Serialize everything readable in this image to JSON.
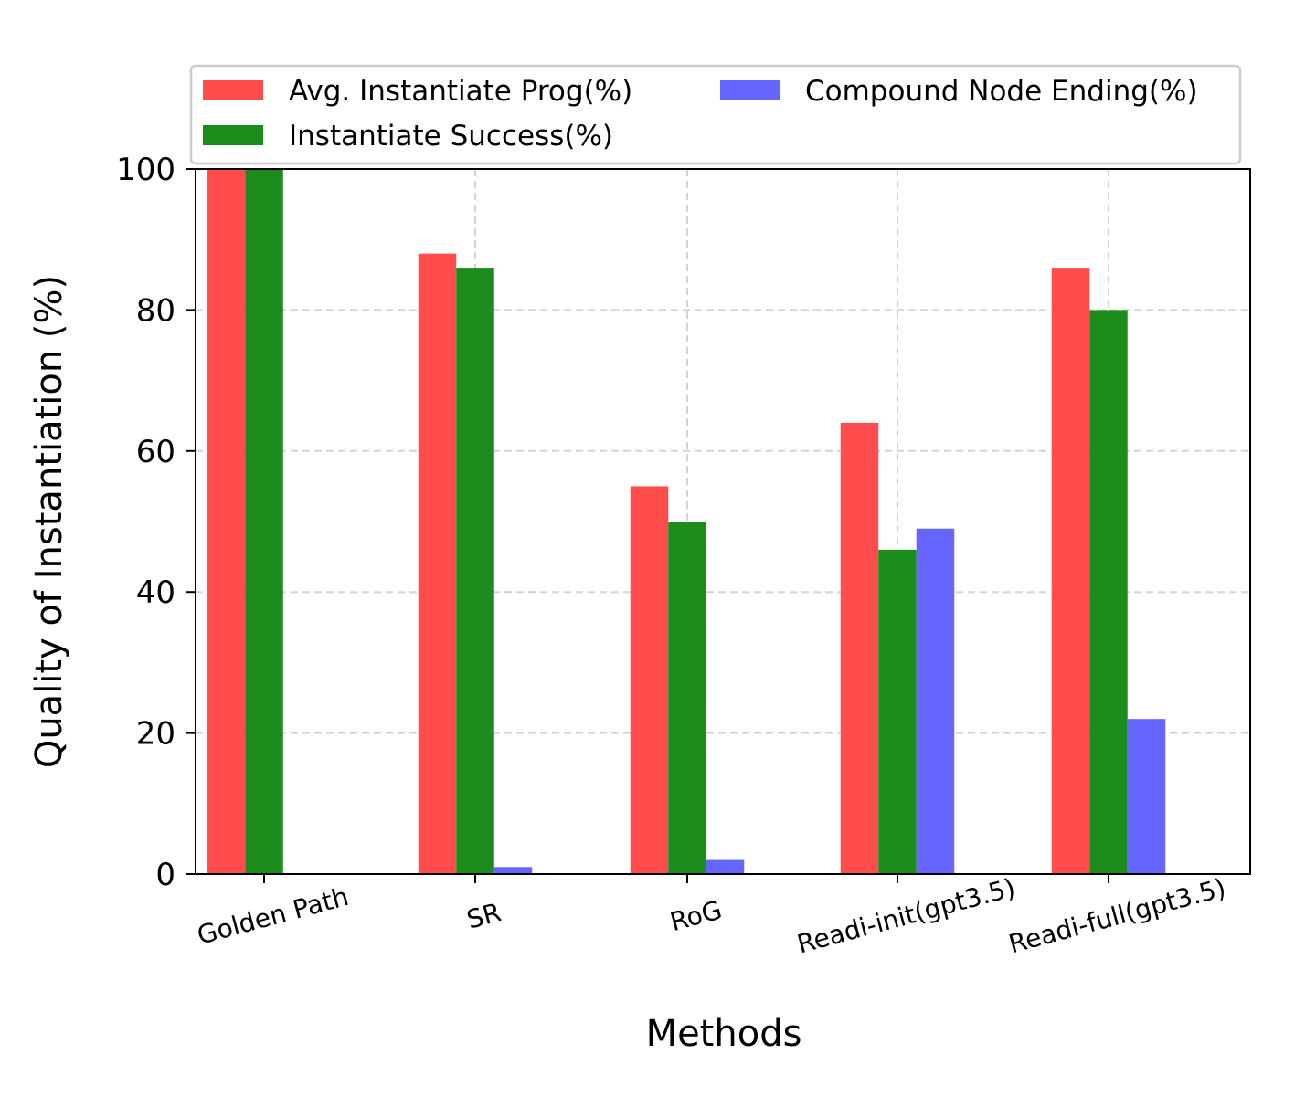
{
  "chart_data": {
    "type": "bar",
    "title": "",
    "xlabel": "Methods",
    "ylabel": "Quality of Instantiation (%)",
    "ylim": [
      0,
      100
    ],
    "yticks": [
      0,
      20,
      40,
      60,
      80,
      100
    ],
    "grid": true,
    "legend_position": "top",
    "categories": [
      "Golden Path",
      "SR",
      "RoG",
      "Readi-init(gpt3.5)",
      "Readi-full(gpt3.5)"
    ],
    "series": [
      {
        "name": "Avg. Instantiate Prog(%)",
        "color": "#ff4c4c",
        "values": [
          100,
          88,
          55,
          64,
          86
        ]
      },
      {
        "name": "Instantiate Success(%)",
        "color": "#1c8c1c",
        "values": [
          100,
          86,
          50,
          46,
          80
        ]
      },
      {
        "name": "Compound Node Ending(%)",
        "color": "#6666ff",
        "values": [
          0,
          1,
          2,
          49,
          22
        ]
      }
    ]
  }
}
